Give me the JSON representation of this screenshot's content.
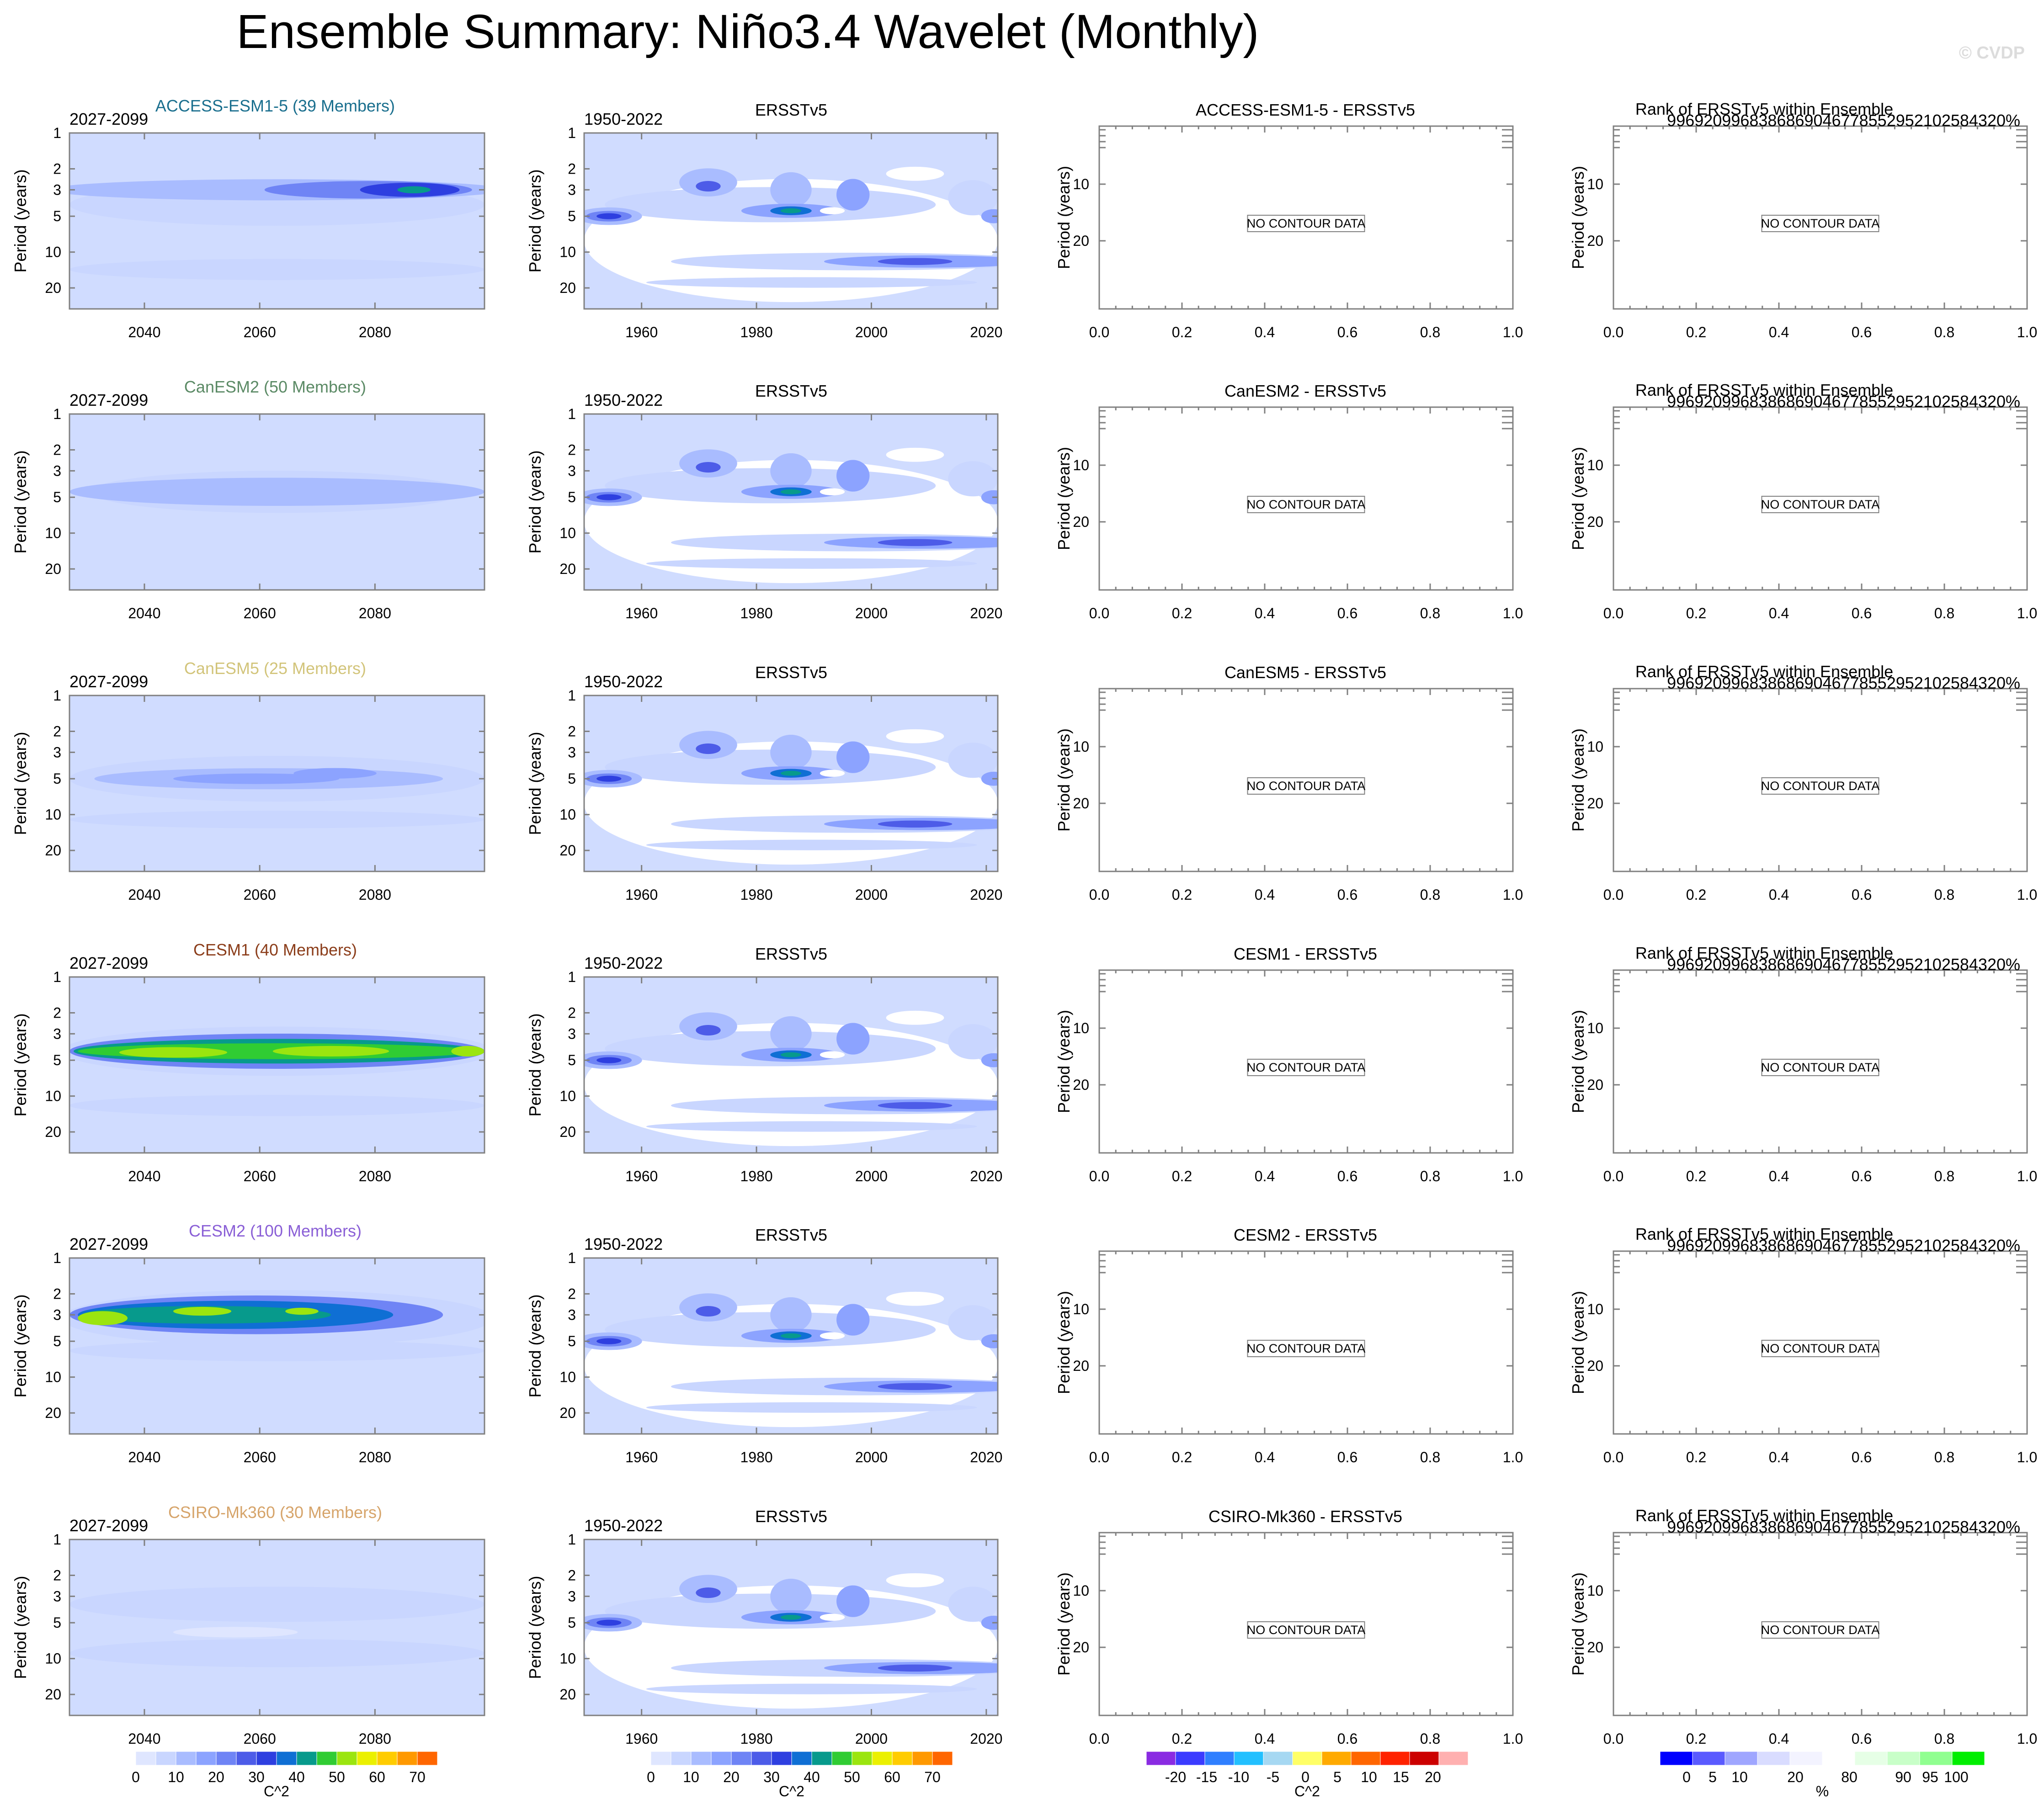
{
  "figure": {
    "title": "Ensemble Summary: Niño3.4 Wavelet (Monthly)",
    "watermark": "© CVDP"
  },
  "colors": {
    "base": "#d0dcff",
    "power_scale": [
      "#ffffff",
      "#dfe6ff",
      "#c9d6ff",
      "#a9bcff",
      "#8ca3ff",
      "#6f84f5",
      "#4d5ce8",
      "#2e3fe0",
      "#0f6fd4",
      "#079a8c",
      "#30cc33",
      "#9be50f",
      "#ebf000",
      "#ffcc00",
      "#ff9900",
      "#ff6600",
      "#ff2200"
    ],
    "diff_scale": [
      "#8a2be2",
      "#3b3bff",
      "#2f7fff",
      "#22c0ff",
      "#a6d8f2",
      "#ffff66",
      "#ffaa00",
      "#ff6600",
      "#ff2200",
      "#cc0000",
      "#ffb0b0"
    ],
    "rank_scale": [
      "#0000ff",
      "#5a5aff",
      "#9fa6ff",
      "#d9dcff",
      "#f3f3ff",
      "#ffffff",
      "#e6ffe6",
      "#c8ffc8",
      "#90ff90",
      "#00ee00"
    ]
  },
  "common": {
    "ylabel": "Period (years)",
    "obs_title": "ERSSTv5",
    "obs_years": "1950-2022",
    "model_years": "2027-2099",
    "rank_title": "Rank of ERSSTv5 within Ensemble",
    "rank_digits": "99692099683868690467785529521025843",
    "rank_pct": "20%",
    "no_contour": "NO CONTOUR DATA",
    "y_ticks_wavelet": [
      "1",
      "2",
      "3",
      "5",
      "10",
      "20"
    ],
    "y_ticks_empty": [
      "10",
      "20"
    ],
    "x_ticks_model": [
      "2040",
      "2060",
      "2080"
    ],
    "x_ticks_obs": [
      "1960",
      "1980",
      "2000",
      "2020"
    ],
    "x_ticks_empty": [
      "0.0",
      "0.2",
      "0.4",
      "0.6",
      "0.8",
      "1.0"
    ]
  },
  "rows": [
    {
      "model": "ACCESS-ESM1-5",
      "title": "ACCESS-ESM1-5 (39 Members)",
      "title_color": "#1a6f8e",
      "diff_title": "ACCESS-ESM1-5 - ERSSTv5"
    },
    {
      "model": "CanESM2",
      "title": "CanESM2 (50 Members)",
      "title_color": "#5b8a65",
      "diff_title": "CanESM2 - ERSSTv5"
    },
    {
      "model": "CanESM5",
      "title": "CanESM5 (25 Members)",
      "title_color": "#d2c47a",
      "diff_title": "CanESM5 - ERSSTv5"
    },
    {
      "model": "CESM1",
      "title": "CESM1 (40 Members)",
      "title_color": "#8b3d1a",
      "diff_title": "CESM1 - ERSSTv5"
    },
    {
      "model": "CESM2",
      "title": "CESM2 (100 Members)",
      "title_color": "#8a5fd6",
      "diff_title": "CESM2 - ERSSTv5"
    },
    {
      "model": "CSIRO-Mk360",
      "title": "CSIRO-Mk360 (30 Members)",
      "title_color": "#d6a46a",
      "diff_title": "CSIRO-Mk360 - ERSSTv5"
    }
  ],
  "colorbars": [
    {
      "name": "power-colorbar-models",
      "labels": [
        "0",
        "10",
        "20",
        "30",
        "40",
        "50",
        "60",
        "70"
      ],
      "units": "C^2"
    },
    {
      "name": "power-colorbar-obs",
      "labels": [
        "0",
        "10",
        "20",
        "30",
        "40",
        "50",
        "60",
        "70"
      ],
      "units": "C^2"
    },
    {
      "name": "diff-colorbar",
      "labels": [
        "-20",
        "-15",
        "-10",
        "-5",
        "0",
        "5",
        "10",
        "15",
        "20"
      ],
      "units": "C^2"
    },
    {
      "name": "rank-colorbar",
      "labels": [
        "0",
        "5",
        "10",
        "20",
        "80",
        "90",
        "95",
        "100"
      ],
      "units": "%"
    }
  ],
  "chart_data": [
    {
      "type": "heatmap",
      "panel": "model wavelet power",
      "models": [
        "ACCESS-ESM1-5",
        "CanESM2",
        "CanESM5",
        "CESM1",
        "CESM2",
        "CSIRO-Mk360"
      ],
      "years": [
        2027,
        2099
      ],
      "xticks": [
        2040,
        2060,
        2080
      ],
      "ylabel": "Period (years)",
      "yticks": [
        1,
        2,
        3,
        5,
        10,
        20
      ],
      "ylim": [
        1,
        30
      ],
      "units": "C^2",
      "levels": [
        0,
        5,
        10,
        15,
        20,
        25,
        30,
        35,
        40,
        45,
        50,
        55,
        60,
        65,
        70,
        75
      ],
      "features": [
        {
          "model": "ACCESS-ESM1-5",
          "band_years": [
            2.5,
            3.5
          ],
          "peak_power": 30,
          "peak_year": 2088
        },
        {
          "model": "CanESM2",
          "band_years": [
            4,
            6
          ],
          "peak_power": 15
        },
        {
          "model": "CanESM5",
          "band_years": [
            4,
            6
          ],
          "peak_power": 15
        },
        {
          "model": "CESM1",
          "band_years": [
            3,
            6
          ],
          "peak_power": 50
        },
        {
          "model": "CESM2",
          "band_years": [
            2.5,
            4
          ],
          "peak_power": 45
        },
        {
          "model": "CSIRO-Mk360",
          "band_years": [
            2,
            12
          ],
          "peak_power": 5
        }
      ]
    },
    {
      "type": "heatmap",
      "panel": "ERSSTv5 wavelet power",
      "dataset": "ERSSTv5",
      "years": [
        1950,
        2022
      ],
      "xticks": [
        1960,
        1980,
        2000,
        2020
      ],
      "ylabel": "Period (years)",
      "yticks": [
        1,
        2,
        3,
        5,
        10,
        20
      ],
      "units": "C^2",
      "features": [
        {
          "year": 1953,
          "period_years": 5,
          "power": 25
        },
        {
          "year": 1971,
          "period_years": 3,
          "power": 25
        },
        {
          "year": 1986,
          "period_years": 4.5,
          "power": 35
        },
        {
          "year": 1991,
          "period_years": 4.5,
          "power": 0
        },
        {
          "year": 1997,
          "period_years": 3.5,
          "power": 20
        },
        {
          "year": 2008,
          "period_years": 12,
          "power": 20
        }
      ]
    },
    {
      "type": "heatmap",
      "panel": "model minus ERSSTv5 difference",
      "xticks": [
        0.0,
        0.2,
        0.4,
        0.6,
        0.8,
        1.0
      ],
      "yticks": [
        10,
        20
      ],
      "ylabel": "Period (years)",
      "units": "C^2",
      "levels": [
        -20,
        -15,
        -10,
        -5,
        0,
        5,
        10,
        15,
        20
      ],
      "note": "NO CONTOUR DATA"
    },
    {
      "type": "heatmap",
      "panel": "Rank of ERSSTv5 within Ensemble",
      "xticks": [
        0.0,
        0.2,
        0.4,
        0.6,
        0.8,
        1.0
      ],
      "yticks": [
        10,
        20
      ],
      "ylabel": "Period (years)",
      "units": "%",
      "levels": [
        0,
        5,
        10,
        20,
        80,
        90,
        95,
        100
      ],
      "note": "NO CONTOUR DATA"
    }
  ]
}
